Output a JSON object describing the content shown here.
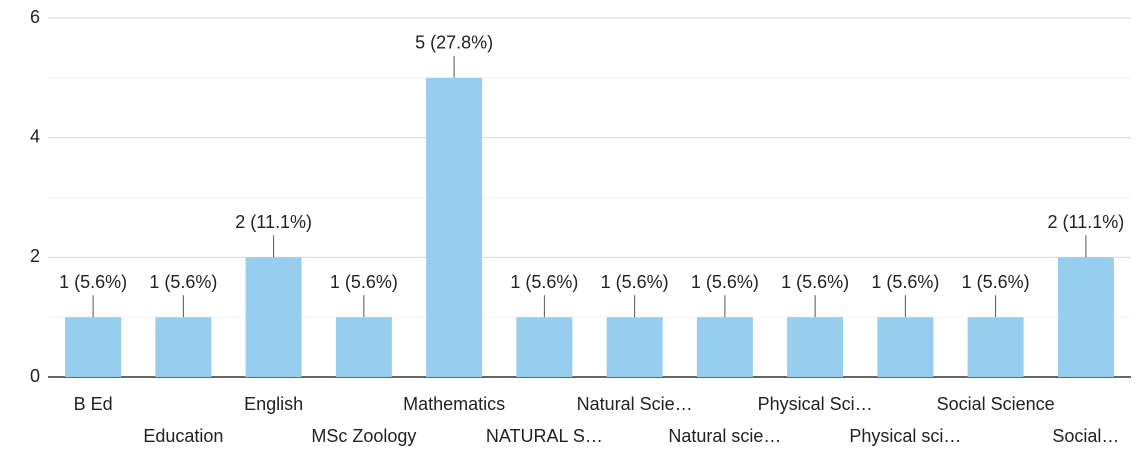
{
  "chart_data": {
    "type": "bar",
    "categories": [
      "B Ed",
      "Education",
      "English",
      "MSc Zoology",
      "Mathematics",
      "NATURAL S…",
      "Natural Scie…",
      "Natural scie…",
      "Physical Sci…",
      "Physical sci…",
      "Social Science",
      "Social…"
    ],
    "values": [
      1,
      1,
      2,
      1,
      5,
      1,
      1,
      1,
      1,
      1,
      1,
      2
    ],
    "value_labels": [
      "1 (5.6%)",
      "1 (5.6%)",
      "2 (11.1%)",
      "1 (5.6%)",
      "5 (27.8%)",
      "1 (5.6%)",
      "1 (5.6%)",
      "1 (5.6%)",
      "1 (5.6%)",
      "1 (5.6%)",
      "1 (5.6%)",
      "2 (11.1%)"
    ],
    "color": "#97cdee",
    "ylim": [
      0,
      6
    ],
    "yticks": [
      0,
      2,
      4,
      6
    ],
    "minor_yticks": [
      1,
      3,
      5
    ],
    "grid": true
  }
}
